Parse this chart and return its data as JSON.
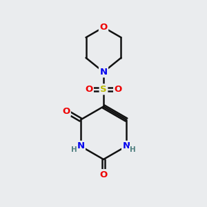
{
  "bg_color": "#eaecee",
  "atom_colors": {
    "C": "#000000",
    "N": "#0000ee",
    "O": "#ee0000",
    "S": "#bbbb00",
    "H": "#508080"
  },
  "bond_color": "#111111",
  "bond_width": 1.8,
  "fs": 9.5
}
